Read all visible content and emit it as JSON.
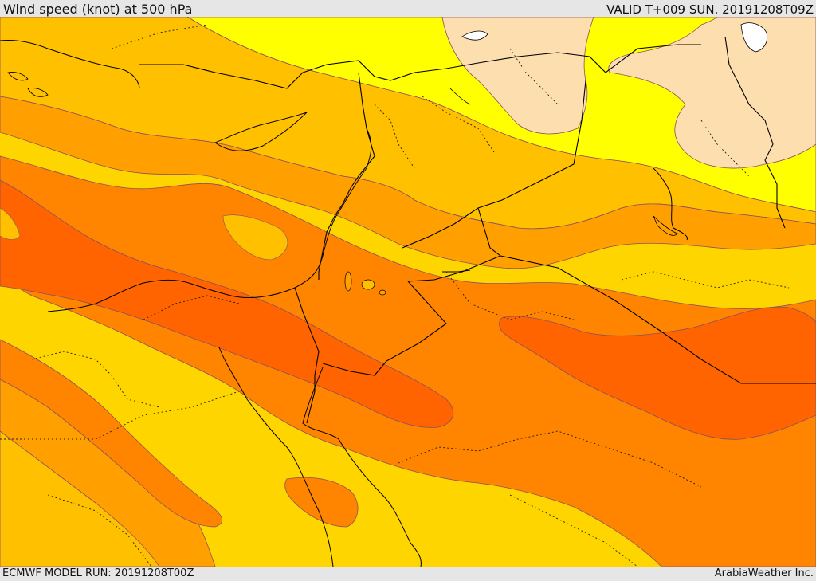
{
  "header": {
    "title": "Wind speed (knot) at 500 hPa",
    "valid": "VALID T+009 SUN. 20191208T09Z"
  },
  "footer": {
    "model_run": "ECMWF MODEL RUN: 20191208T00Z",
    "credit": "ArabiaWeather Inc."
  },
  "colors": {
    "sea": "#ffd500",
    "beige": "#fddeae",
    "yellow": "#ffff00",
    "light_orange": "#ffc000",
    "orange": "#ffa000",
    "deep_orange": "#ff8400",
    "red_orange": "#ff6400",
    "contour": "#8a5060",
    "border": "#000000"
  }
}
